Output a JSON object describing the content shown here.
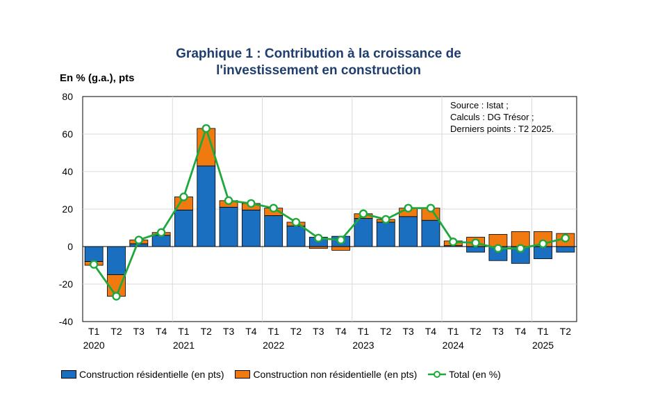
{
  "title": {
    "line1": "Graphique 1 : Contribution à la croissance de",
    "line2": "l'investissement en construction"
  },
  "source": {
    "line1": "Source : Istat ;",
    "line2": "Calculs : DG Trésor ;",
    "line3": "Derniers points : T2 2025."
  },
  "colors": {
    "residential": "#1a6fc1",
    "nonresidential": "#f07a10",
    "total_line": "#1ea83c",
    "title": "#1f3e6e",
    "grid": "#d9d9d9"
  },
  "legend": {
    "residential": "Construction résidentielle (en pts)",
    "nonresidential": "Construction non résidentielle (en pts)",
    "total": "Total (en %)"
  },
  "chart_data": {
    "type": "bar",
    "stacked": true,
    "title": "Graphique 1 : Contribution à la croissance de l'investissement en construction",
    "ylabel": "En % (g.a.), pts",
    "xlabel": "",
    "ylim": [
      -40,
      80
    ],
    "yticks": [
      -40,
      -20,
      0,
      20,
      40,
      60,
      80
    ],
    "grid": true,
    "legend_position": "bottom",
    "categories": [
      "T1",
      "T2",
      "T3",
      "T4",
      "T1",
      "T2",
      "T3",
      "T4",
      "T1",
      "T2",
      "T3",
      "T4",
      "T1",
      "T2",
      "T3",
      "T4",
      "T1",
      "T2",
      "T3",
      "T4",
      "T1",
      "T2"
    ],
    "years": [
      {
        "label": "2020",
        "start": 0
      },
      {
        "label": "2021",
        "start": 4
      },
      {
        "label": "2022",
        "start": 8
      },
      {
        "label": "2023",
        "start": 12
      },
      {
        "label": "2024",
        "start": 16
      },
      {
        "label": "2025",
        "start": 20
      }
    ],
    "series": [
      {
        "name": "Construction résidentielle (en pts)",
        "kind": "bar",
        "values": [
          -8,
          -15,
          1.5,
          6,
          19.5,
          43,
          21,
          19.5,
          16.5,
          11,
          5,
          5.5,
          15,
          13,
          16,
          14,
          0.5,
          -3,
          -7.5,
          -9,
          -6.5,
          -3
        ]
      },
      {
        "name": "Construction non résidentielle (en pts)",
        "kind": "bar",
        "values": [
          -2,
          -11.5,
          2,
          1.5,
          7,
          20,
          3.5,
          3.5,
          4,
          2,
          -1,
          -2,
          2.5,
          1.5,
          4.5,
          6.5,
          2.5,
          5,
          6.5,
          8,
          8,
          7
        ]
      },
      {
        "name": "Total (en %)",
        "kind": "line",
        "values": [
          -9.5,
          -26.5,
          3.5,
          7.5,
          26.5,
          63,
          24.5,
          23,
          20.5,
          13,
          4.5,
          3.5,
          17.5,
          14.5,
          20.5,
          20.5,
          2.5,
          2,
          -1,
          -1,
          1.5,
          4.5
        ]
      }
    ]
  }
}
